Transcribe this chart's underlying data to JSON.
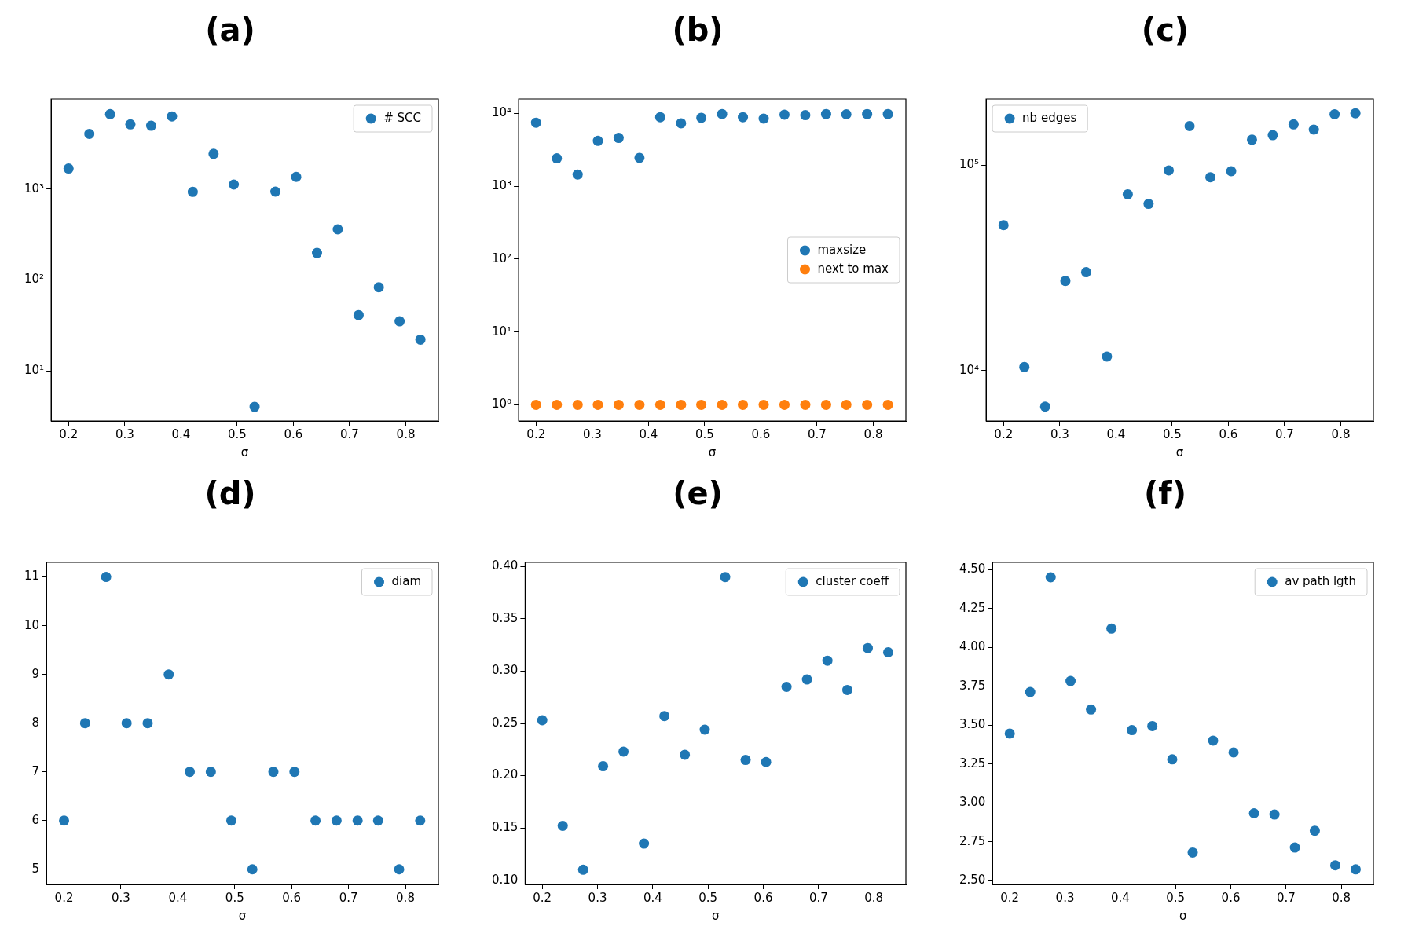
{
  "chart_data": [
    {
      "type": "scatter",
      "title": "(a)",
      "xlabel": "σ",
      "x": [
        0.2,
        0.237,
        0.274,
        0.31,
        0.347,
        0.384,
        0.421,
        0.458,
        0.494,
        0.531,
        0.568,
        0.605,
        0.642,
        0.679,
        0.716,
        0.752,
        0.789,
        0.826
      ],
      "xlim": [
        0.169,
        0.858
      ],
      "xticks": [
        0.2,
        0.3,
        0.4,
        0.5,
        0.6,
        0.7,
        0.8
      ],
      "log": "y",
      "ylim": [
        2.8,
        9800
      ],
      "yticks": [
        {
          "value": 10,
          "label": "10¹"
        },
        {
          "value": 100,
          "label": "10²"
        },
        {
          "value": 1000,
          "label": "10³"
        }
      ],
      "legend": "top right",
      "marker": "circle",
      "series": [
        {
          "name": "# SCC",
          "color": "#1f77b4",
          "values": [
            1680,
            4050,
            6670,
            5150,
            4970,
            6300,
            930,
            2440,
            1120,
            4.0,
            936,
            1360,
            198,
            360,
            41,
            83,
            35,
            22
          ]
        }
      ]
    },
    {
      "type": "scatter",
      "title": "(b)",
      "xlabel": "σ",
      "x": [
        0.2,
        0.237,
        0.274,
        0.31,
        0.347,
        0.384,
        0.421,
        0.458,
        0.494,
        0.531,
        0.568,
        0.605,
        0.642,
        0.679,
        0.716,
        0.752,
        0.789,
        0.826
      ],
      "xlim": [
        0.169,
        0.858
      ],
      "xticks": [
        0.2,
        0.3,
        0.4,
        0.5,
        0.6,
        0.7,
        0.8
      ],
      "log": "y",
      "ylim": [
        0.63,
        15800
      ],
      "yticks": [
        {
          "value": 1,
          "label": "10⁰"
        },
        {
          "value": 10,
          "label": "10¹"
        },
        {
          "value": 100,
          "label": "10²"
        },
        {
          "value": 1000,
          "label": "10³"
        },
        {
          "value": 10000,
          "label": "10⁴"
        }
      ],
      "legend": "right",
      "marker": "circle",
      "series": [
        {
          "name": "maxsize",
          "color": "#1f77b4",
          "values": [
            7470,
            2420,
            1450,
            4200,
            4610,
            2460,
            8890,
            7330,
            8720,
            9820,
            8890,
            8490,
            9640,
            9470,
            9820,
            9730,
            9820,
            9820
          ]
        },
        {
          "name": "next to max",
          "color": "#ff7f0e",
          "values": [
            1,
            1,
            1,
            1,
            1,
            1,
            1,
            1,
            1,
            1,
            1,
            1,
            1,
            1,
            1,
            1,
            1,
            1
          ]
        }
      ]
    },
    {
      "type": "scatter",
      "title": "(c)",
      "xlabel": "σ",
      "x": [
        0.2,
        0.237,
        0.274,
        0.31,
        0.347,
        0.384,
        0.421,
        0.458,
        0.494,
        0.531,
        0.568,
        0.605,
        0.642,
        0.679,
        0.716,
        0.752,
        0.789,
        0.826
      ],
      "xlim": [
        0.169,
        0.858
      ],
      "xticks": [
        0.2,
        0.3,
        0.4,
        0.5,
        0.6,
        0.7,
        0.8
      ],
      "log": "y",
      "ylim": [
        5680,
        210000
      ],
      "yticks": [
        {
          "value": 10000,
          "label": "10⁴"
        },
        {
          "value": 100000,
          "label": "10⁵"
        }
      ],
      "legend": "top left",
      "marker": "circle",
      "series": [
        {
          "name": "nb edges",
          "color": "#1f77b4",
          "values": [
            51000,
            10400,
            6670,
            27300,
            30100,
            11700,
            72100,
            64800,
            94300,
            155000,
            87300,
            93400,
            133000,
            140000,
            158000,
            149000,
            177000,
            179000
          ]
        }
      ]
    },
    {
      "type": "scatter",
      "title": "(d)",
      "xlabel": "σ",
      "x": [
        0.2,
        0.237,
        0.274,
        0.31,
        0.347,
        0.384,
        0.421,
        0.458,
        0.494,
        0.531,
        0.568,
        0.605,
        0.642,
        0.679,
        0.716,
        0.752,
        0.789,
        0.826
      ],
      "xlim": [
        0.169,
        0.858
      ],
      "xticks": [
        0.2,
        0.3,
        0.4,
        0.5,
        0.6,
        0.7,
        0.8
      ],
      "ylim": [
        4.69,
        11.3
      ],
      "yticks": [
        5,
        6,
        7,
        8,
        9,
        10,
        11
      ],
      "legend": "top right",
      "marker": "circle",
      "series": [
        {
          "name": "diam",
          "color": "#1f77b4",
          "values": [
            6,
            8,
            11,
            8,
            8,
            9,
            7,
            7,
            6,
            5,
            7,
            7,
            6,
            6,
            6,
            6,
            5,
            6
          ]
        }
      ]
    },
    {
      "type": "scatter",
      "title": "(e)",
      "xlabel": "σ",
      "x": [
        0.2,
        0.237,
        0.274,
        0.31,
        0.347,
        0.384,
        0.421,
        0.458,
        0.494,
        0.531,
        0.568,
        0.605,
        0.642,
        0.679,
        0.716,
        0.752,
        0.789,
        0.826
      ],
      "xlim": [
        0.169,
        0.858
      ],
      "xticks": [
        0.2,
        0.3,
        0.4,
        0.5,
        0.6,
        0.7,
        0.8
      ],
      "ylim": [
        0.096,
        0.404
      ],
      "yticks": [
        {
          "value": 0.1,
          "label": "0.10"
        },
        {
          "value": 0.15,
          "label": "0.15"
        },
        {
          "value": 0.2,
          "label": "0.20"
        },
        {
          "value": 0.25,
          "label": "0.25"
        },
        {
          "value": 0.3,
          "label": "0.30"
        },
        {
          "value": 0.35,
          "label": "0.35"
        },
        {
          "value": 0.4,
          "label": "0.40"
        }
      ],
      "legend": "top right",
      "marker": "circle",
      "series": [
        {
          "name": "cluster coeff",
          "color": "#1f77b4",
          "values": [
            0.253,
            0.152,
            0.11,
            0.209,
            0.223,
            0.135,
            0.257,
            0.22,
            0.244,
            0.39,
            0.215,
            0.213,
            0.285,
            0.292,
            0.31,
            0.282,
            0.322,
            0.318
          ]
        }
      ]
    },
    {
      "type": "scatter",
      "title": "(f)",
      "xlabel": "σ",
      "x": [
        0.2,
        0.237,
        0.274,
        0.31,
        0.347,
        0.384,
        0.421,
        0.458,
        0.494,
        0.531,
        0.568,
        0.605,
        0.642,
        0.679,
        0.716,
        0.752,
        0.789,
        0.826
      ],
      "xlim": [
        0.169,
        0.858
      ],
      "xticks": [
        0.2,
        0.3,
        0.4,
        0.5,
        0.6,
        0.7,
        0.8
      ],
      "ylim": [
        2.476,
        4.547
      ],
      "yticks": [
        {
          "value": 2.5,
          "label": "2.50"
        },
        {
          "value": 2.75,
          "label": "2.75"
        },
        {
          "value": 3,
          "label": "3.00"
        },
        {
          "value": 3.25,
          "label": "3.25"
        },
        {
          "value": 3.5,
          "label": "3.50"
        },
        {
          "value": 3.75,
          "label": "3.75"
        },
        {
          "value": 4,
          "label": "4.00"
        },
        {
          "value": 4.25,
          "label": "4.25"
        },
        {
          "value": 4.5,
          "label": "4.50"
        }
      ],
      "legend": "top right",
      "marker": "circle",
      "series": [
        {
          "name": "av path lgth",
          "color": "#1f77b4",
          "values": [
            3.446,
            3.713,
            4.451,
            3.784,
            3.601,
            4.121,
            3.468,
            3.494,
            3.28,
            2.681,
            3.401,
            3.325,
            2.933,
            2.925,
            2.713,
            2.821,
            2.599,
            2.573
          ]
        }
      ]
    }
  ]
}
